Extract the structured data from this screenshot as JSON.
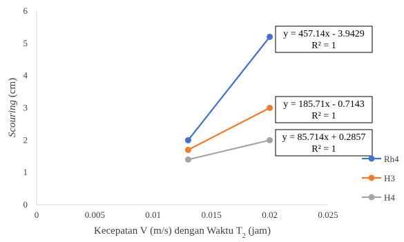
{
  "chart_data": {
    "type": "line",
    "xlabel": {
      "prefix": "Kecepatan V (m/s) dengan Waktu T",
      "sub": "2",
      "suffix": " (jam)"
    },
    "ylabel": {
      "italic": "Scouring",
      "rest": " (cm)"
    },
    "xlim": [
      0,
      0.025
    ],
    "ylim": [
      0,
      6
    ],
    "x_ticks": [
      "0",
      "0.005",
      "0.01",
      "0.015",
      "0.02",
      "0.025"
    ],
    "y_ticks": [
      "0",
      "1",
      "2",
      "3",
      "4",
      "5",
      "6"
    ],
    "grid": false,
    "legend_position": "right",
    "series": [
      {
        "name": "Rh4",
        "color": "#4472C4",
        "x": [
          0.013,
          0.02
        ],
        "y": [
          2.0,
          5.2
        ],
        "trendline": {
          "equation": "y = 457.14x - 3.9429",
          "r2": "R² = 1"
        }
      },
      {
        "name": "H3",
        "color": "#ED7D31",
        "x": [
          0.013,
          0.02
        ],
        "y": [
          1.7,
          3.0
        ],
        "trendline": {
          "equation": "y = 185.71x - 0.7143",
          "r2": "R² = 1"
        }
      },
      {
        "name": "H4",
        "color": "#A5A5A5",
        "x": [
          0.013,
          0.02
        ],
        "y": [
          1.4,
          2.0
        ],
        "trendline": {
          "equation": "y = 85.714x + 0.2857",
          "r2": "R² = 1"
        }
      }
    ]
  }
}
